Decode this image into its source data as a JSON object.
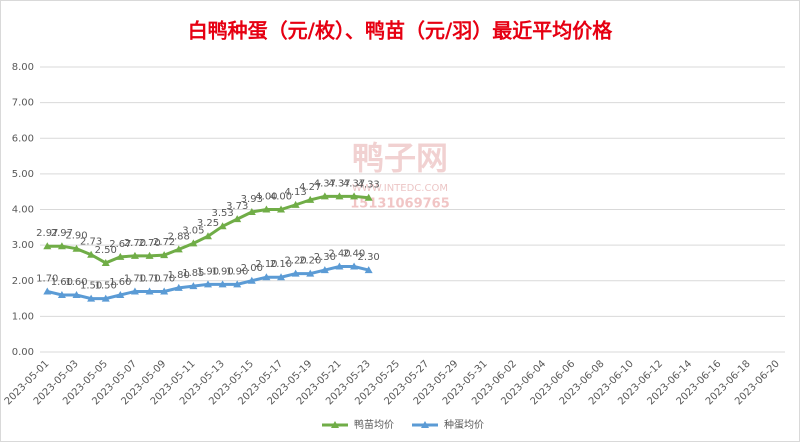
{
  "chart_data": {
    "type": "line",
    "title": "白鸭种蛋（元/枚）、鸭苗（元/羽）最近平均价格",
    "watermark": [
      "鸭子网",
      "WWW.INTEDC.COM",
      "15131069765"
    ],
    "categories": [
      "2023-05-01",
      null,
      "2023-05-03",
      null,
      "2023-05-05",
      null,
      "2023-05-07",
      null,
      "2023-05-09",
      null,
      "2023-05-11",
      null,
      "2023-05-13",
      null,
      "2023-05-15",
      null,
      "2023-05-17",
      null,
      "2023-05-19",
      null,
      "2023-05-21",
      null,
      "2023-05-23",
      null,
      "2023-05-25",
      null,
      "2023-05-27",
      null,
      "2023-05-29",
      null,
      "2023-05-31",
      null,
      "2023-06-02",
      null,
      "2023-06-04",
      null,
      "2023-06-06",
      null,
      "2023-06-08",
      null,
      "2023-06-10",
      null,
      "2023-06-12",
      null,
      "2023-06-14",
      null,
      "2023-06-16",
      null,
      "2023-06-18",
      null,
      "2023-06-20"
    ],
    "series": [
      {
        "name": "鸭苗均价",
        "color": "#70ad47",
        "values": [
          2.97,
          2.97,
          2.9,
          2.73,
          2.5,
          2.67,
          2.7,
          2.7,
          2.72,
          2.88,
          3.05,
          3.25,
          3.53,
          3.73,
          3.93,
          4.0,
          4.0,
          4.13,
          4.27,
          4.37,
          4.37,
          4.37,
          4.33,
          null,
          null,
          null,
          null,
          null,
          null,
          null,
          null,
          null,
          null,
          null,
          null,
          null,
          null,
          null,
          null,
          null,
          null,
          null,
          null,
          null,
          null,
          null,
          null,
          null,
          null,
          null,
          null
        ],
        "value_labels": [
          "2.97",
          "2.97",
          "2.90",
          "2.73",
          "2.50",
          "2.67",
          "2.70",
          "2.70",
          "2.72",
          "2.88",
          "3.05",
          "3.25",
          "3.53",
          "3.73",
          "3.93",
          "4.00",
          "4.00",
          "4.13",
          "4.27",
          "4.37",
          "4.37",
          "4.37",
          "4.33",
          null,
          null,
          null,
          null,
          null,
          null,
          null,
          null,
          null,
          null,
          null,
          null,
          null,
          null,
          null,
          null,
          null,
          null,
          null,
          null,
          null,
          null,
          null,
          null,
          null,
          null,
          null,
          null
        ]
      },
      {
        "name": "种蛋均价",
        "color": "#5b9bd5",
        "values": [
          1.7,
          1.6,
          1.6,
          1.5,
          1.5,
          1.6,
          1.7,
          1.7,
          1.7,
          1.8,
          1.85,
          1.9,
          1.9,
          1.9,
          2.0,
          2.1,
          2.1,
          2.2,
          2.2,
          2.3,
          2.4,
          2.4,
          2.3,
          null,
          null,
          null,
          null,
          null,
          null,
          null,
          null,
          null,
          null,
          null,
          null,
          null,
          null,
          null,
          null,
          null,
          null,
          null,
          null,
          null,
          null,
          null,
          null,
          null,
          null,
          null,
          null
        ],
        "value_labels": [
          "1.70",
          "1.60",
          "1.60",
          "1.50",
          "1.50",
          "1.60",
          "1.70",
          "1.70",
          "1.70",
          "1.80",
          "1.85",
          "1.90",
          "1.90",
          "1.90",
          "2.00",
          "2.10",
          "2.10",
          "2.20",
          "2.20",
          "2.30",
          "2.40",
          "2.40",
          "2.30",
          null,
          null,
          null,
          null,
          null,
          null,
          null,
          null,
          null,
          null,
          null,
          null,
          null,
          null,
          null,
          null,
          null,
          null,
          null,
          null,
          null,
          null,
          null,
          null,
          null,
          null,
          null,
          null
        ]
      }
    ],
    "ylim": [
      0,
      8
    ],
    "yticks": [
      {
        "value": 0,
        "label": "0.00"
      },
      {
        "value": 1,
        "label": "1.00"
      },
      {
        "value": 2,
        "label": "2.00"
      },
      {
        "value": 3,
        "label": "3.00"
      },
      {
        "value": 4,
        "label": "4.00"
      },
      {
        "value": 5,
        "label": "5.00"
      },
      {
        "value": 6,
        "label": "6.00"
      },
      {
        "value": 7,
        "label": "7.00"
      },
      {
        "value": 8,
        "label": "8.00"
      }
    ],
    "grid": true,
    "legend": "bottom"
  }
}
